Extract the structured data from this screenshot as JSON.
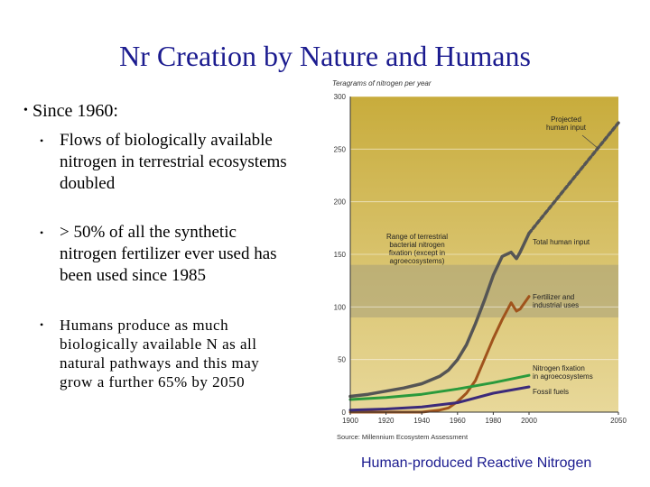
{
  "slide": {
    "title": "Nr Creation by Nature and Humans",
    "bullets": {
      "heading": "Since 1960:",
      "items": [
        "Flows of biologically available nitrogen in terrestrial ecosystems doubled",
        "> 50% of all the synthetic nitrogen fertilizer ever used has been used since 1985",
        "Humans produce as much biologically available N as all natural pathways and this may grow a further 65% by 2050"
      ]
    },
    "caption": "Human-produced Reactive Nitrogen"
  },
  "chart_data": {
    "type": "line",
    "ylabel": "Teragrams of nitrogen per year",
    "source": "Source: Millennium Ecosystem Assessment",
    "xlim": [
      1900,
      2050
    ],
    "ylim": [
      0,
      300
    ],
    "xticks": [
      1900,
      1920,
      1940,
      1960,
      1980,
      2000,
      2050
    ],
    "yticks": [
      0,
      50,
      100,
      150,
      200,
      250,
      300
    ],
    "band": {
      "range": [
        90,
        140
      ]
    },
    "annotations": {
      "projected": [
        "Projected",
        "human input"
      ],
      "band": [
        "Range of terrestrial",
        "bacterial nitrogen",
        "fixation (except in",
        "agroecosystems)"
      ],
      "total": [
        "Total human input"
      ],
      "fertilizer": [
        "Fertilizer and",
        "industrial uses"
      ],
      "fixation": [
        "Nitrogen fixation",
        "in agroecosystems"
      ],
      "fossil": [
        "Fossil fuels"
      ]
    },
    "colors": {
      "total": "#555555",
      "fertilizer": "#a0531c",
      "fixation": "#2a9a3c",
      "fossil": "#3b2a7a",
      "band": "#a8a07a",
      "sky": "#c8ac3c",
      "ground": "#e8d89a"
    },
    "series": [
      {
        "key": "total",
        "x": [
          1900,
          1910,
          1920,
          1930,
          1940,
          1950,
          1955,
          1960,
          1965,
          1970,
          1975,
          1980,
          1985,
          1990,
          1993,
          1995,
          2000
        ],
        "values": [
          15,
          17,
          20,
          23,
          27,
          34,
          40,
          50,
          64,
          84,
          106,
          130,
          148,
          152,
          146,
          152,
          170
        ]
      },
      {
        "key": "projected",
        "x": [
          2000,
          2050
        ],
        "values": [
          170,
          275
        ]
      },
      {
        "key": "fertilizer",
        "x": [
          1900,
          1940,
          1950,
          1955,
          1960,
          1965,
          1970,
          1975,
          1980,
          1985,
          1990,
          1993,
          1995,
          2000
        ],
        "values": [
          0,
          0,
          2,
          4,
          10,
          18,
          30,
          50,
          70,
          88,
          104,
          96,
          98,
          110
        ]
      },
      {
        "key": "fixation",
        "x": [
          1900,
          1920,
          1940,
          1960,
          1980,
          2000
        ],
        "values": [
          12,
          14,
          17,
          22,
          28,
          35
        ]
      },
      {
        "key": "fossil",
        "x": [
          1900,
          1920,
          1940,
          1960,
          1980,
          2000
        ],
        "values": [
          2,
          3,
          5,
          9,
          18,
          24
        ]
      }
    ]
  }
}
